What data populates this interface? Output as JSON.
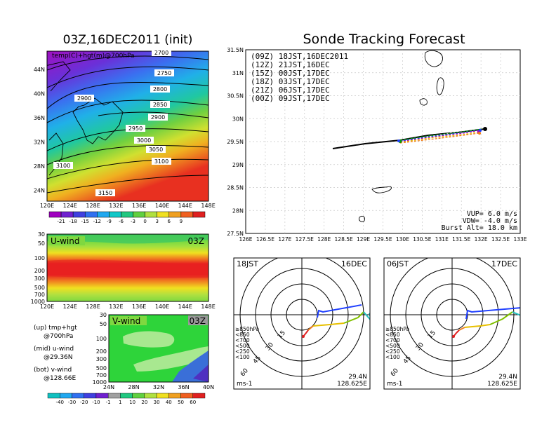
{
  "left_top": {
    "title": "03Z,16DEC2011 (init)",
    "field_label": "temp(C)+hgt(m)@700hPa",
    "lat_ticks": [
      "44N",
      "40N",
      "36N",
      "32N",
      "28N",
      "24N"
    ],
    "lon_ticks": [
      "120E",
      "124E",
      "128E",
      "132E",
      "136E",
      "140E",
      "144E",
      "148E"
    ],
    "contour_labels": [
      "2700",
      "2750",
      "2800",
      "2850",
      "2900",
      "2950",
      "3000",
      "3050",
      "2900",
      "3100",
      "3100",
      "3150"
    ],
    "colorbar_ticks": [
      "-21",
      "-18",
      "-15",
      "-12",
      "-9",
      "-6",
      "-3",
      "0",
      "3",
      "6",
      "9"
    ]
  },
  "uwind": {
    "label": "U-wind",
    "time": "03Z",
    "p_ticks": [
      "30",
      "50",
      "100",
      "200",
      "300",
      "500",
      "700",
      "1000"
    ],
    "lon_ticks": [
      "120E",
      "124E",
      "128E",
      "132E",
      "136E",
      "140E",
      "144E",
      "148E"
    ]
  },
  "vwind": {
    "label": "V-wind",
    "time": "03Z",
    "p_ticks": [
      "30",
      "50",
      "100",
      "200",
      "300",
      "500",
      "700",
      "1000"
    ],
    "lat_ticks": [
      "24N",
      "28N",
      "32N",
      "36N",
      "40N"
    ]
  },
  "side_labels": [
    {
      "a": "(up) tmp+hgt",
      "b": "@700hPa"
    },
    {
      "a": "(mid) u-wind",
      "b": "@29.36N"
    },
    {
      "a": "(bot) v-wind",
      "b": "@128.66E"
    }
  ],
  "bottom_colorbar_ticks": [
    "-40",
    "-30",
    "-20",
    "-10",
    "-1",
    "1",
    "10",
    "20",
    "30",
    "40",
    "50",
    "60"
  ],
  "main_map": {
    "title": "Sonde Tracking Forecast",
    "legend": [
      {
        "text": "(09Z) 18JST,16DEC2011",
        "color": "#000000"
      },
      {
        "text": "(12Z) 21JST,16DEC",
        "color": "#b000c0"
      },
      {
        "text": "(15Z) 00JST,17DEC",
        "color": "#2040ff"
      },
      {
        "text": "(18Z) 03JST,17DEC",
        "color": "#00a000"
      },
      {
        "text": "(21Z) 06JST,17DEC",
        "color": "#e8c000"
      },
      {
        "text": "(00Z) 09JST,17DEC",
        "color": "#f08020"
      }
    ],
    "lat_ticks": [
      "31.5N",
      "31N",
      "30.5N",
      "30N",
      "29.5N",
      "29N",
      "28.5N",
      "28N",
      "27.5N"
    ],
    "lon_ticks": [
      "126E",
      "126.5E",
      "127E",
      "127.5E",
      "128E",
      "128.5E",
      "129E",
      "129.5E",
      "130E",
      "130.5E",
      "131E",
      "131.5E",
      "132E",
      "132.5E",
      "133E"
    ],
    "params": [
      "VUP= 6.0 m/s",
      "VDW= -4.0 m/s",
      "Burst Alt= 18.0 km"
    ]
  },
  "hodographs": [
    {
      "time": "18JST",
      "date": "16DEC",
      "ring_labels": [
        "15",
        "30",
        "45",
        "60"
      ],
      "unit": "ms-1",
      "lat": "29.4N",
      "lon": "128.625E"
    },
    {
      "time": "06JST",
      "date": "17DEC",
      "ring_labels": [
        "15",
        "30",
        "45",
        "60"
      ],
      "unit": "ms-1",
      "lat": "29.4N",
      "lon": "128.625E"
    }
  ],
  "hodo_legend": [
    {
      "text": "≥850hPa",
      "color": "#e02020"
    },
    {
      "text": "<850",
      "color": "#f08020"
    },
    {
      "text": "<700",
      "color": "#e8c000"
    },
    {
      "text": "<500",
      "color": "#80c000"
    },
    {
      "text": "<250",
      "color": "#20c0c0"
    },
    {
      "text": "<100",
      "color": "#2040ff"
    }
  ],
  "colors": {
    "temp_scale": [
      "#a000c0",
      "#7020d0",
      "#4040e0",
      "#3070f0",
      "#20a8f0",
      "#10c8c8",
      "#20c880",
      "#60d040",
      "#b0e040",
      "#f0e020",
      "#f0a020",
      "#f06020",
      "#e02020"
    ]
  }
}
